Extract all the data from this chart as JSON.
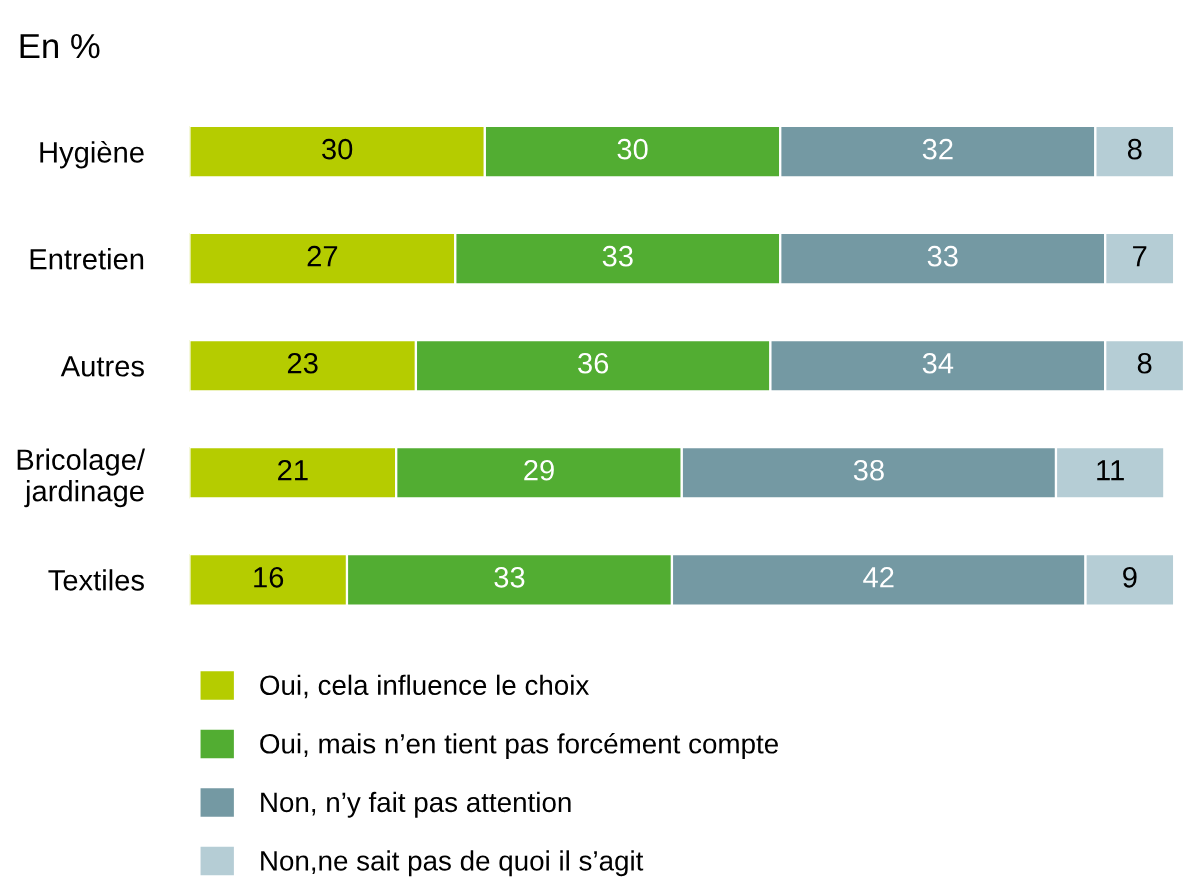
{
  "chart_data": {
    "type": "bar",
    "orientation": "horizontal",
    "stacked": true,
    "data_labels": true,
    "legend": "bottom",
    "grid": false,
    "subtitle": "En %",
    "categories": [
      "Hygiène",
      "Entretien",
      "Autres",
      "Bricolage/\njardinage",
      "Textiles"
    ],
    "series": [
      {
        "name": "Oui, cela influence le choix",
        "color": "#b5cc00",
        "values": [
          30,
          27,
          23,
          21,
          16
        ]
      },
      {
        "name": "Oui, mais n’en tient pas forcément compte",
        "color": "#52ad32",
        "values": [
          30,
          33,
          36,
          29,
          33
        ]
      },
      {
        "name": "Non, n’y fait pas attention",
        "color": "#7499a3",
        "values": [
          32,
          33,
          34,
          38,
          42
        ]
      },
      {
        "name": "Non,ne sait pas de quoi il s’agit",
        "color": "#b5cdd5",
        "values": [
          8,
          7,
          8,
          11,
          9
        ]
      }
    ]
  }
}
